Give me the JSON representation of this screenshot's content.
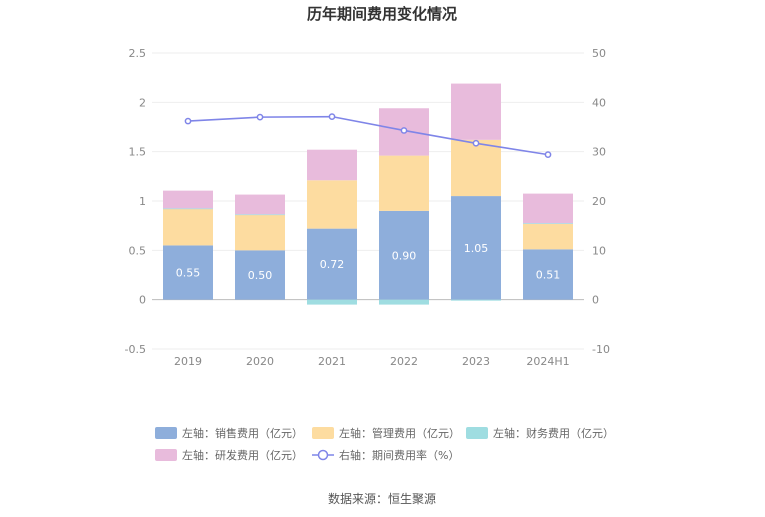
{
  "chart_data": {
    "type": "bar",
    "title": "历年期间费用变化情况",
    "categories": [
      "2019",
      "2020",
      "2021",
      "2022",
      "2023",
      "2024H1"
    ],
    "left_axis": {
      "ylim": [
        -0.5,
        2.5
      ],
      "ticks": [
        "-0.5",
        "0",
        "0.5",
        "1",
        "1.5",
        "2",
        "2.5"
      ]
    },
    "right_axis": {
      "ylim": [
        -10,
        50
      ],
      "ticks": [
        "-10",
        "0",
        "10",
        "20",
        "30",
        "40",
        "50"
      ]
    },
    "series": [
      {
        "name": "左轴：销售费用（亿元）",
        "kind": "bar",
        "stack": true,
        "color": "#8eaedb",
        "values": [
          0.55,
          0.5,
          0.72,
          0.9,
          1.05,
          0.51
        ],
        "labels": [
          "0.55",
          "0.50",
          "0.72",
          "0.90",
          "1.05",
          "0.51"
        ]
      },
      {
        "name": "左轴：管理费用（亿元）",
        "kind": "bar",
        "stack": true,
        "color": "#fddca0",
        "values": [
          0.37,
          0.36,
          0.49,
          0.56,
          0.57,
          0.26
        ]
      },
      {
        "name": "左轴：财务费用（亿元）",
        "kind": "bar",
        "stack": true,
        "color": "#9fdde1",
        "values": [
          0.005,
          0.005,
          -0.05,
          -0.05,
          -0.01,
          0.005
        ]
      },
      {
        "name": "左轴：研发费用（亿元）",
        "kind": "bar",
        "stack": true,
        "color": "#e8bbdc",
        "values": [
          0.18,
          0.2,
          0.31,
          0.48,
          0.57,
          0.3
        ]
      },
      {
        "name": "右轴：期间费用率（%）",
        "kind": "line",
        "axis": "right",
        "color": "#7f85e8",
        "values": [
          36.2,
          37.0,
          37.1,
          34.3,
          31.7,
          29.4
        ]
      }
    ]
  },
  "source_text": "数据来源：恒生聚源"
}
